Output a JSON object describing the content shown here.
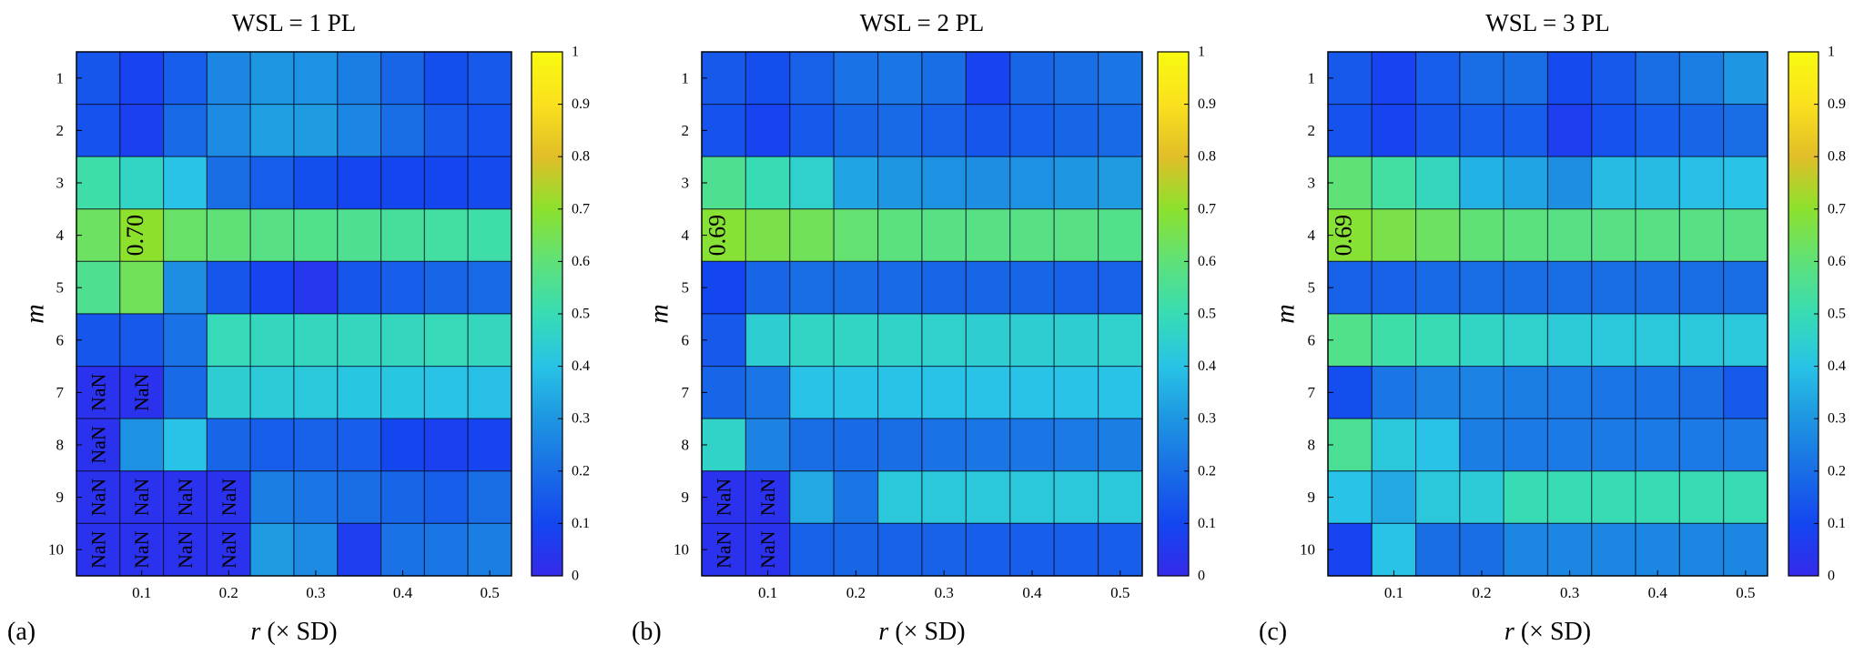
{
  "chart_data": [
    {
      "type": "heatmap",
      "panel_label": "(a)",
      "title": "WSL = 1 PL",
      "xlabel_var": "r",
      "xlabel_rest": " (× SD)",
      "ylabel": "m",
      "x_values": [
        0.05,
        0.1,
        0.15,
        0.2,
        0.25,
        0.3,
        0.35,
        0.4,
        0.45,
        0.5
      ],
      "x_ticks": [
        0.1,
        0.2,
        0.3,
        0.4,
        0.5
      ],
      "x_tick_labels": [
        "0.1",
        "0.2",
        "0.3",
        "0.4",
        "0.5"
      ],
      "y_values": [
        1,
        2,
        3,
        4,
        5,
        6,
        7,
        8,
        9,
        10
      ],
      "y_tick_labels": [
        "1",
        "2",
        "3",
        "4",
        "5",
        "6",
        "7",
        "8",
        "9",
        "10"
      ],
      "clim": [
        0,
        1
      ],
      "colorbar_ticks": [
        "0",
        "0.1",
        "0.2",
        "0.3",
        "0.4",
        "0.5",
        "0.6",
        "0.7",
        "0.8",
        "0.9",
        "1"
      ],
      "values": [
        [
          0.14,
          0.09,
          0.16,
          0.26,
          0.3,
          0.29,
          0.24,
          0.18,
          0.12,
          0.15
        ],
        [
          0.13,
          0.08,
          0.19,
          0.27,
          0.32,
          0.31,
          0.26,
          0.2,
          0.15,
          0.13
        ],
        [
          0.52,
          0.47,
          0.4,
          0.2,
          0.16,
          0.12,
          0.1,
          0.1,
          0.1,
          0.11
        ],
        [
          0.63,
          0.7,
          0.62,
          0.6,
          0.58,
          0.57,
          0.56,
          0.54,
          0.53,
          0.52
        ],
        [
          0.56,
          0.64,
          0.28,
          0.14,
          0.09,
          0.05,
          0.14,
          0.16,
          0.18,
          0.19
        ],
        [
          0.14,
          0.15,
          0.21,
          0.49,
          0.48,
          0.48,
          0.48,
          0.48,
          0.49,
          0.48
        ],
        [
          null,
          null,
          0.19,
          0.44,
          0.43,
          0.42,
          0.41,
          0.41,
          0.4,
          0.39
        ],
        [
          null,
          0.29,
          0.4,
          0.18,
          0.16,
          0.17,
          0.16,
          0.1,
          0.08,
          0.09
        ],
        [
          null,
          null,
          null,
          null,
          0.24,
          0.22,
          0.2,
          0.18,
          0.16,
          0.2
        ],
        [
          null,
          null,
          null,
          null,
          0.31,
          0.27,
          0.07,
          0.21,
          0.22,
          0.24
        ]
      ],
      "nan_label": "NaN",
      "highlight": {
        "row": 4,
        "col": 2,
        "label": "0.70"
      }
    },
    {
      "type": "heatmap",
      "panel_label": "(b)",
      "title": "WSL = 2 PL",
      "xlabel_var": "r",
      "xlabel_rest": " (× SD)",
      "ylabel": "m",
      "x_values": [
        0.05,
        0.1,
        0.15,
        0.2,
        0.25,
        0.3,
        0.35,
        0.4,
        0.45,
        0.5
      ],
      "x_ticks": [
        0.1,
        0.2,
        0.3,
        0.4,
        0.5
      ],
      "x_tick_labels": [
        "0.1",
        "0.2",
        "0.3",
        "0.4",
        "0.5"
      ],
      "y_values": [
        1,
        2,
        3,
        4,
        5,
        6,
        7,
        8,
        9,
        10
      ],
      "y_tick_labels": [
        "1",
        "2",
        "3",
        "4",
        "5",
        "6",
        "7",
        "8",
        "9",
        "10"
      ],
      "clim": [
        0,
        1
      ],
      "colorbar_ticks": [
        "0",
        "0.1",
        "0.2",
        "0.3",
        "0.4",
        "0.5",
        "0.6",
        "0.7",
        "0.8",
        "0.9",
        "1"
      ],
      "values": [
        [
          0.15,
          0.12,
          0.17,
          0.21,
          0.22,
          0.2,
          0.09,
          0.18,
          0.2,
          0.22
        ],
        [
          0.13,
          0.09,
          0.15,
          0.18,
          0.19,
          0.17,
          0.14,
          0.16,
          0.18,
          0.19
        ],
        [
          0.56,
          0.5,
          0.45,
          0.33,
          0.3,
          0.29,
          0.28,
          0.29,
          0.3,
          0.31
        ],
        [
          0.69,
          0.66,
          0.64,
          0.61,
          0.59,
          0.58,
          0.58,
          0.58,
          0.58,
          0.57
        ],
        [
          0.1,
          0.18,
          0.2,
          0.2,
          0.19,
          0.18,
          0.18,
          0.18,
          0.17,
          0.17
        ],
        [
          0.15,
          0.44,
          0.47,
          0.47,
          0.46,
          0.45,
          0.44,
          0.44,
          0.44,
          0.45
        ],
        [
          0.18,
          0.22,
          0.4,
          0.4,
          0.4,
          0.4,
          0.4,
          0.4,
          0.4,
          0.4
        ],
        [
          0.46,
          0.25,
          0.2,
          0.19,
          0.2,
          0.21,
          0.22,
          0.22,
          0.23,
          0.24
        ],
        [
          null,
          null,
          0.34,
          0.22,
          0.42,
          0.42,
          0.42,
          0.42,
          0.42,
          0.42
        ],
        [
          null,
          null,
          0.17,
          0.18,
          0.17,
          0.17,
          0.16,
          0.16,
          0.16,
          0.16
        ]
      ],
      "nan_label": "NaN",
      "highlight": {
        "row": 4,
        "col": 1,
        "label": "0.69"
      }
    },
    {
      "type": "heatmap",
      "panel_label": "(c)",
      "title": "WSL = 3 PL",
      "xlabel_var": "r",
      "xlabel_rest": " (× SD)",
      "ylabel": "m",
      "x_values": [
        0.05,
        0.1,
        0.15,
        0.2,
        0.25,
        0.3,
        0.35,
        0.4,
        0.45,
        0.5
      ],
      "x_ticks": [
        0.1,
        0.2,
        0.3,
        0.4,
        0.5
      ],
      "x_tick_labels": [
        "0.1",
        "0.2",
        "0.3",
        "0.4",
        "0.5"
      ],
      "y_values": [
        1,
        2,
        3,
        4,
        5,
        6,
        7,
        8,
        9,
        10
      ],
      "y_tick_labels": [
        "1",
        "2",
        "3",
        "4",
        "5",
        "6",
        "7",
        "8",
        "9",
        "10"
      ],
      "clim": [
        0,
        1
      ],
      "colorbar_ticks": [
        "0",
        "0.1",
        "0.2",
        "0.3",
        "0.4",
        "0.5",
        "0.6",
        "0.7",
        "0.8",
        "0.9",
        "1"
      ],
      "values": [
        [
          0.15,
          0.09,
          0.16,
          0.2,
          0.2,
          0.11,
          0.15,
          0.2,
          0.24,
          0.3
        ],
        [
          0.13,
          0.09,
          0.14,
          0.16,
          0.16,
          0.07,
          0.13,
          0.16,
          0.18,
          0.2
        ],
        [
          0.6,
          0.53,
          0.48,
          0.36,
          0.33,
          0.28,
          0.38,
          0.38,
          0.39,
          0.4
        ],
        [
          0.69,
          0.66,
          0.63,
          0.6,
          0.59,
          0.58,
          0.58,
          0.58,
          0.58,
          0.58
        ],
        [
          0.17,
          0.17,
          0.19,
          0.2,
          0.2,
          0.2,
          0.2,
          0.2,
          0.2,
          0.2
        ],
        [
          0.57,
          0.52,
          0.5,
          0.47,
          0.45,
          0.43,
          0.42,
          0.42,
          0.42,
          0.42
        ],
        [
          0.12,
          0.22,
          0.25,
          0.25,
          0.24,
          0.23,
          0.22,
          0.21,
          0.2,
          0.15
        ],
        [
          0.55,
          0.42,
          0.4,
          0.24,
          0.23,
          0.23,
          0.23,
          0.23,
          0.23,
          0.23
        ],
        [
          0.4,
          0.34,
          0.42,
          0.43,
          0.5,
          0.5,
          0.5,
          0.5,
          0.5,
          0.5
        ],
        [
          0.09,
          0.4,
          0.2,
          0.2,
          0.26,
          0.26,
          0.26,
          0.26,
          0.26,
          0.26
        ]
      ],
      "nan_label": "NaN",
      "highlight": {
        "row": 4,
        "col": 1,
        "label": "0.69"
      }
    }
  ]
}
